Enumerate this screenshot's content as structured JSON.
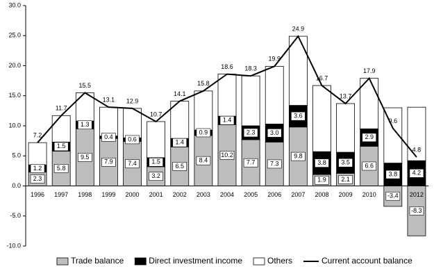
{
  "chart_data": {
    "type": "bar",
    "stacked": true,
    "categories": [
      "1996",
      "1997",
      "1998",
      "1999",
      "2000",
      "2001",
      "2002",
      "2003",
      "2004",
      "2005",
      "2006",
      "2007",
      "2008",
      "2009",
      "2010",
      "2011",
      "2012"
    ],
    "series": [
      {
        "name": "Trade balance",
        "color": "#bdbdbd",
        "values": [
          2.3,
          5.8,
          9.5,
          7.9,
          7.4,
          3.2,
          6.5,
          8.4,
          10.2,
          7.7,
          7.3,
          9.8,
          1.9,
          2.1,
          6.6,
          -3.4,
          -8.3
        ]
      },
      {
        "name": "Direct investment income",
        "color": "#000000",
        "values": [
          1.2,
          1.5,
          1.3,
          0.4,
          0.6,
          1.5,
          1.4,
          0.9,
          1.4,
          2.3,
          3.0,
          3.6,
          3.8,
          3.5,
          2.9,
          3.8,
          4.2
        ],
        "value_labels": [
          "1.2",
          "1.5",
          "1.3",
          "0.4",
          "0.6",
          "1.5",
          "1.4",
          "0.9",
          "1.4",
          "2.3",
          "3.0",
          "3.6",
          "3.8",
          "3.5",
          "2.9",
          "3.8",
          "4.2"
        ]
      },
      {
        "name": "Others",
        "color": "#ffffff",
        "values": [
          3.7,
          4.4,
          4.7,
          4.8,
          4.9,
          6.0,
          6.2,
          6.5,
          7.0,
          8.3,
          9.6,
          11.5,
          11.0,
          8.1,
          8.4,
          9.2,
          8.9
        ]
      },
      {
        "name": "Current account balance",
        "type": "line",
        "color": "#000000",
        "values": [
          7.2,
          11.7,
          15.5,
          13.1,
          12.9,
          10.7,
          14.1,
          15.8,
          18.6,
          18.3,
          19.9,
          24.9,
          16.7,
          13.7,
          17.9,
          9.6,
          4.8
        ]
      }
    ],
    "ylim": [
      -10,
      30
    ],
    "yticks": [
      {
        "value": -10,
        "label": "-10.0"
      },
      {
        "value": -5,
        "label": "-5.0"
      },
      {
        "value": 0,
        "label": "0.0"
      },
      {
        "value": 5,
        "label": "5.0"
      },
      {
        "value": 10,
        "label": "10.0"
      },
      {
        "value": 15,
        "label": "15.0"
      },
      {
        "value": 20,
        "label": "20.0"
      },
      {
        "value": 25,
        "label": "25.0"
      },
      {
        "value": 30,
        "label": "30.0"
      }
    ],
    "legend": "bottom"
  }
}
